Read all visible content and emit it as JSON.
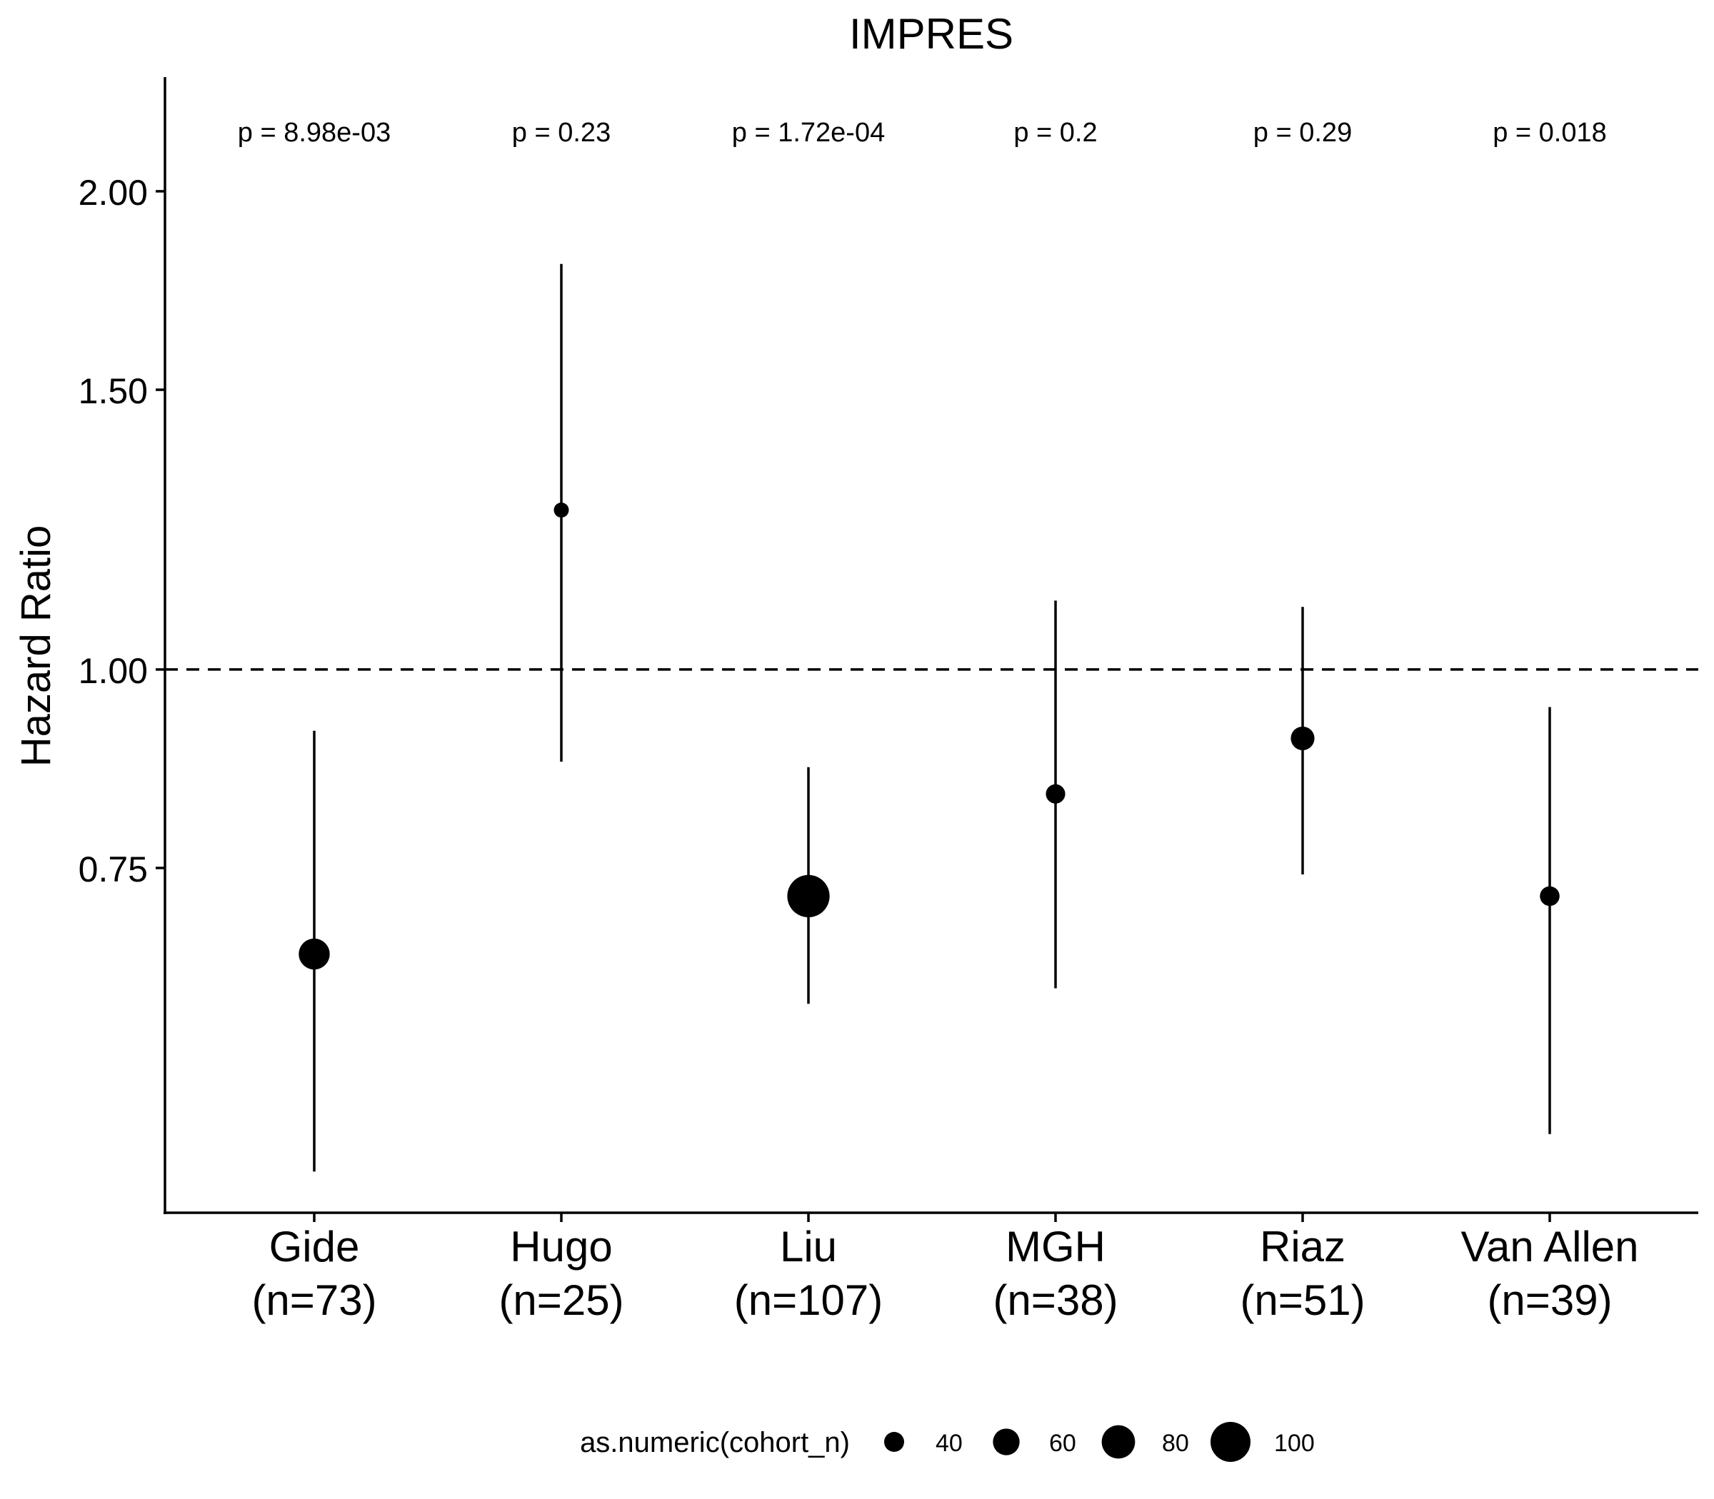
{
  "chart_data": {
    "type": "scatter",
    "title": "IMPRES",
    "xlabel": "",
    "ylabel": "Hazard Ratio",
    "y_scale": "log",
    "ylim": [
      0.455,
      2.36
    ],
    "yticks": [
      0.75,
      1.0,
      1.5,
      2.0
    ],
    "ytick_labels": [
      "0.75",
      "1.00",
      "1.50",
      "2.00"
    ],
    "reference_line": {
      "y": 1.0,
      "style": "dashed"
    },
    "categories": [
      {
        "name": "Gide",
        "n_label": "(n=73)"
      },
      {
        "name": "Hugo",
        "n_label": "(n=25)"
      },
      {
        "name": "Liu",
        "n_label": "(n=107)"
      },
      {
        "name": "MGH",
        "n_label": "(n=38)"
      },
      {
        "name": "Riaz",
        "n_label": "(n=51)"
      },
      {
        "name": "Van Allen",
        "n_label": "(n=39)"
      }
    ],
    "hr": [
      0.662,
      1.26,
      0.72,
      0.835,
      0.905,
      0.72
    ],
    "ci_lower": [
      0.483,
      0.875,
      0.616,
      0.63,
      0.743,
      0.51
    ],
    "ci_upper": [
      0.915,
      1.8,
      0.868,
      1.105,
      1.095,
      0.947
    ],
    "cohort_n": [
      73,
      25,
      107,
      38,
      51,
      39
    ],
    "p_labels": [
      "p = 8.98e-03",
      "p = 0.23",
      "p = 1.72e-04",
      "p = 0.2",
      "p = 0.29",
      "p = 0.018"
    ],
    "legend": {
      "title": "as.numeric(cohort_n)",
      "position": "bottom",
      "sizes": [
        40,
        60,
        80,
        100
      ],
      "labels": [
        "40",
        "60",
        "80",
        "100"
      ]
    },
    "grid": false
  }
}
